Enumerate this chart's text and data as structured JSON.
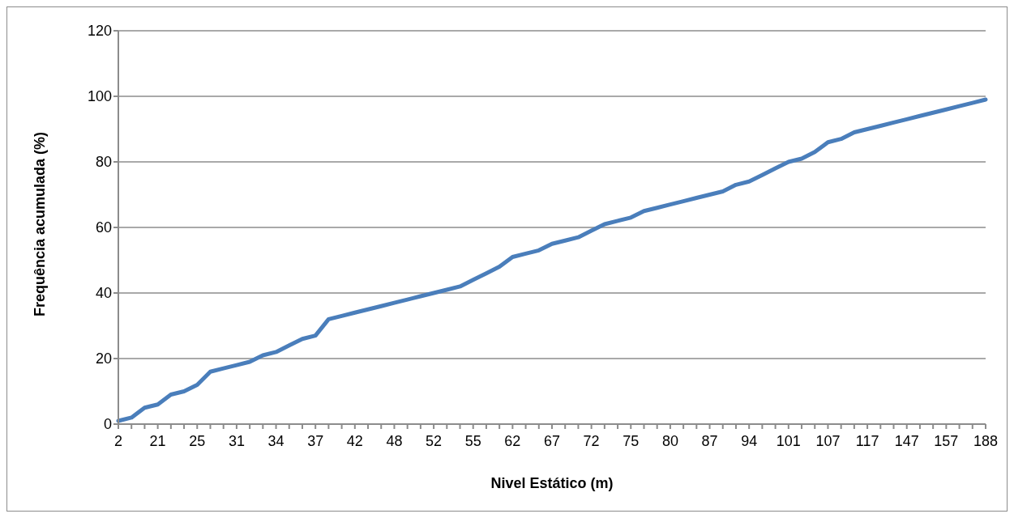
{
  "chart_data": {
    "type": "line",
    "xlabel": "Nivel Estático (m)",
    "ylabel": "Frequência acumulada (%)",
    "categories": [
      "2",
      null,
      null,
      "21",
      null,
      null,
      "25",
      null,
      null,
      "31",
      null,
      null,
      "34",
      null,
      null,
      "37",
      null,
      null,
      "42",
      null,
      null,
      "48",
      null,
      null,
      "52",
      null,
      null,
      "55",
      null,
      null,
      "62",
      null,
      null,
      "67",
      null,
      null,
      "72",
      null,
      null,
      "75",
      null,
      null,
      "80",
      null,
      null,
      "87",
      null,
      null,
      "94",
      null,
      null,
      "101",
      null,
      null,
      "107",
      null,
      null,
      "117",
      null,
      null,
      "147",
      null,
      null,
      "157",
      null,
      null,
      "188"
    ],
    "series": [
      {
        "color": "#4a7ebb",
        "values": [
          1,
          2,
          5,
          6,
          9,
          10,
          12,
          16,
          17,
          18,
          19,
          21,
          22,
          24,
          26,
          27,
          32,
          33,
          34,
          35,
          36,
          37,
          38,
          39,
          40,
          41,
          42,
          44,
          46,
          48,
          51,
          52,
          53,
          55,
          56,
          57,
          59,
          61,
          62,
          63,
          65,
          66,
          67,
          68,
          69,
          70,
          71,
          73,
          74,
          76,
          78,
          80,
          81,
          83,
          86,
          87,
          89,
          90,
          91,
          92,
          93,
          94,
          95,
          96,
          97,
          98,
          99
        ]
      }
    ],
    "ylim": [
      0,
      120
    ],
    "yticks": [
      0,
      20,
      40,
      60,
      80,
      100,
      120
    ],
    "grid": "y",
    "marker": "none",
    "line_style": "solid",
    "legend": false
  }
}
